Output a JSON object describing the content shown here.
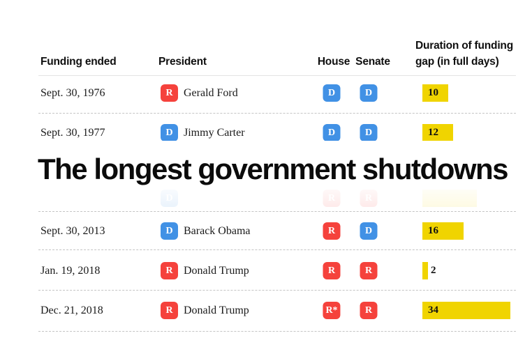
{
  "title": "The longest government shutdowns",
  "table": {
    "headers": {
      "funding_ended": "Funding ended",
      "president": "President",
      "house": "House",
      "senate": "Senate",
      "duration_line1": "Duration of funding",
      "duration_line2": "gap (in full days)"
    },
    "colors": {
      "republican": "#f5423c",
      "democrat": "#4191e5",
      "bar_yellow": "#f0d400"
    },
    "rows": [
      {
        "date": "Sept. 30, 1976",
        "president": "Gerald Ford",
        "president_party": "R",
        "house": "D",
        "senate": "D",
        "days": 10,
        "days_label": "10",
        "ghost": false
      },
      {
        "date": "Sept. 30, 1977",
        "president": "Jimmy Carter",
        "president_party": "D",
        "house": "D",
        "senate": "D",
        "days": 12,
        "days_label": "12",
        "ghost": false
      },
      {
        "date": "",
        "president": "",
        "president_party": "D",
        "house": "R",
        "senate": "R",
        "days": 21,
        "days_label": "",
        "ghost": true
      },
      {
        "date": "Sept. 30, 2013",
        "president": "Barack Obama",
        "president_party": "D",
        "house": "R",
        "senate": "D",
        "days": 16,
        "days_label": "16",
        "ghost": false
      },
      {
        "date": "Jan. 19, 2018",
        "president": "Donald Trump",
        "president_party": "R",
        "house": "R",
        "senate": "R",
        "days": 2,
        "days_label": "2",
        "ghost": false
      },
      {
        "date": "Dec. 21, 2018",
        "president": "Donald Trump",
        "president_party": "R",
        "house": "R*",
        "senate": "R",
        "days": 34,
        "days_label": "34",
        "ghost": false
      }
    ]
  },
  "chart_data": {
    "type": "bar",
    "title": "The longest government shutdowns",
    "categories": [
      "Sept. 30, 1976",
      "Sept. 30, 1977",
      "Sept. 30, 2013",
      "Jan. 19, 2018",
      "Dec. 21, 2018"
    ],
    "values": [
      10,
      12,
      16,
      2,
      34
    ],
    "series_label": "Duration of funding gap (in full days)",
    "bar_color": "#f0d400",
    "orientation": "horizontal",
    "annotations": {
      "president_by_row": [
        "Gerald Ford (R)",
        "Jimmy Carter (D)",
        "Barack Obama (D)",
        "Donald Trump (R)",
        "Donald Trump (R)"
      ],
      "house_by_row": [
        "D",
        "D",
        "R",
        "R",
        "R*"
      ],
      "senate_by_row": [
        "D",
        "D",
        "D",
        "R",
        "R"
      ]
    }
  }
}
